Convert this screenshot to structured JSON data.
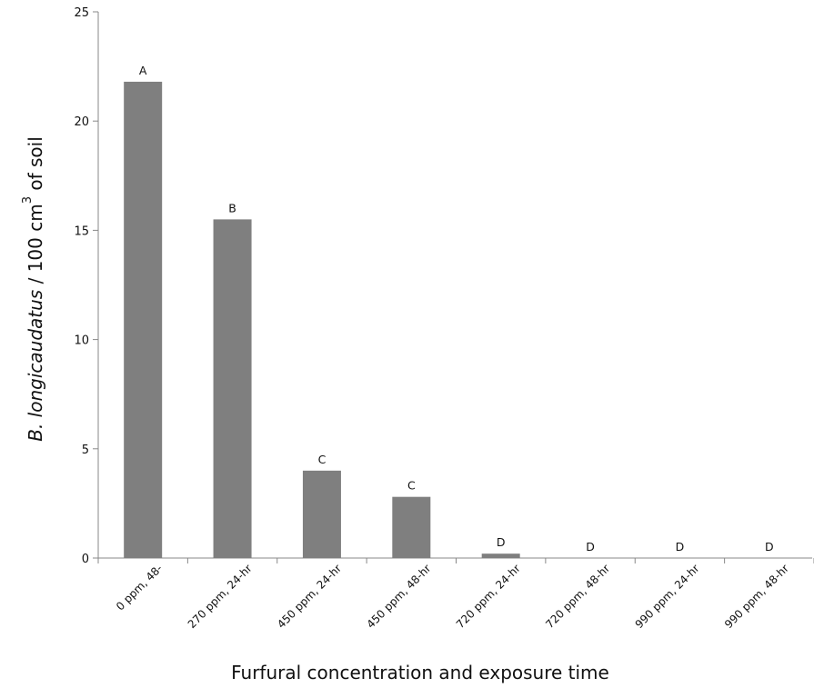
{
  "chart_data": {
    "type": "bar",
    "categories": [
      "0 ppm, 48-",
      "270 ppm, 24-hr",
      "450 ppm, 24-hr",
      "450 ppm, 48-hr",
      "720 ppm, 24-hr",
      "720 ppm, 48-hr",
      "990 ppm, 24-hr",
      "990 ppm, 48-hr"
    ],
    "values": [
      21.8,
      15.5,
      4.0,
      2.8,
      0.2,
      0,
      0,
      0
    ],
    "bar_labels": [
      "A",
      "B",
      "C",
      "C",
      "D",
      "D",
      "D",
      "D"
    ],
    "title": "",
    "xlabel": "Furfural concentration and exposure time",
    "ylabel": {
      "italic_part": "B. longicaudatus",
      "rest": " / 100 cm",
      "superscript": "3",
      "suffix": " of soil"
    },
    "ylim": [
      0,
      25
    ],
    "yticks": [
      0,
      5,
      10,
      15,
      20,
      25
    ],
    "grid": false,
    "bar_color": "#7f7f7f"
  }
}
